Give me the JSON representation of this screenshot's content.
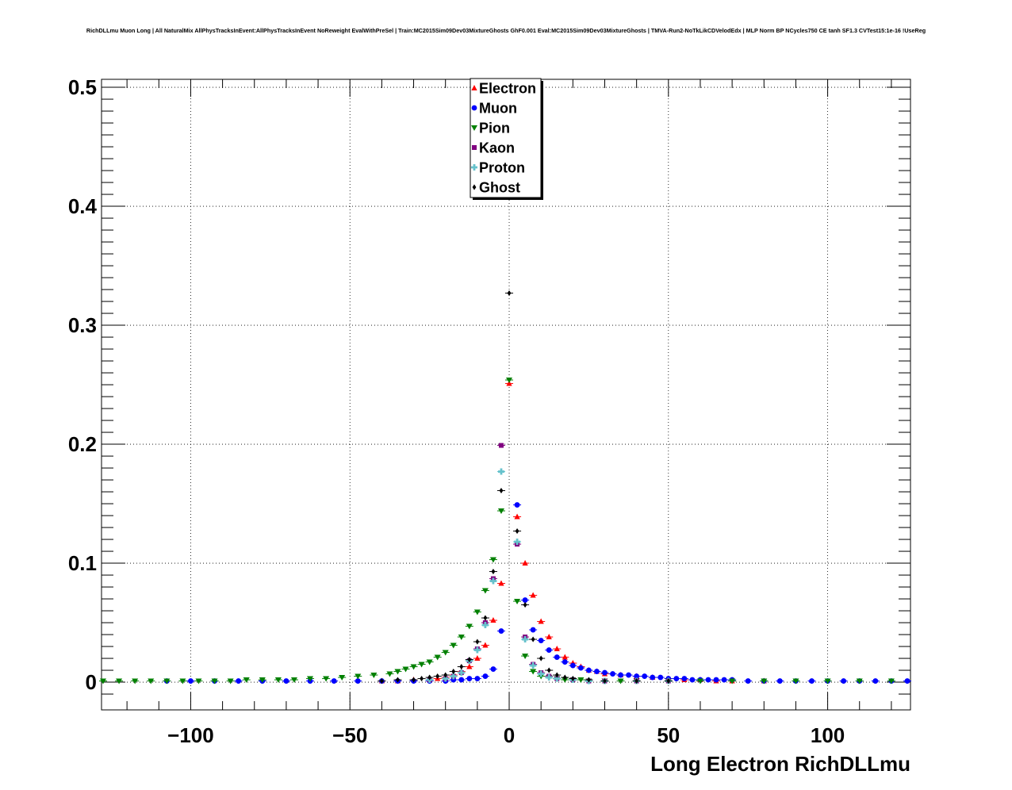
{
  "page_title": "RichDLLmu Muon Long | All NaturalMix AllPhysTracksInEvent:AllPhysTracksInEvent NoReweight EvalWithPreSel | Train:MC2015Sim09Dev03MixtureGhosts GhF0.001 Eval:MC2015Sim09Dev03MixtureGhosts | TMVA-Run2-NoTkLikCDVelodEdx | MLP Norm BP NCycles750 CE tanh SF1.3 CVTest15:1e-16 !UseReg",
  "chart_data": {
    "type": "scatter",
    "title": "",
    "xlabel": "Long Electron RichDLLmu",
    "ylabel": "",
    "xlim": [
      -128,
      126
    ],
    "ylim": [
      -0.0233,
      0.5067
    ],
    "xticks": [
      -100,
      -50,
      0,
      50,
      100
    ],
    "xtick_labels": [
      "−100",
      "−50",
      "0",
      "50",
      "100"
    ],
    "yticks": [
      0,
      0.1,
      0.2,
      0.3,
      0.4,
      0.5
    ],
    "ytick_labels": [
      "0",
      "0.1",
      "0.2",
      "0.3",
      "0.4",
      "0.5"
    ],
    "grid": true,
    "legend_position": "top-center",
    "series": [
      {
        "name": "Electron",
        "color": "#ff0000",
        "marker": "triangle-up",
        "x": [
          -40,
          -35,
          -30,
          -25,
          -22.5,
          -20,
          -17.5,
          -15,
          -12.5,
          -10,
          -7.5,
          -5,
          -2.5,
          0,
          2.5,
          5,
          7.5,
          10,
          12.5,
          15,
          17.5,
          20,
          22.5,
          25,
          27.5,
          30,
          35,
          40,
          45,
          50,
          55,
          60,
          65,
          70,
          80
        ],
        "y": [
          0.001,
          0.001,
          0.002,
          0.002,
          0.003,
          0.004,
          0.006,
          0.009,
          0.013,
          0.02,
          0.031,
          0.052,
          0.083,
          0.251,
          0.139,
          0.1,
          0.073,
          0.051,
          0.038,
          0.028,
          0.021,
          0.016,
          0.013,
          0.01,
          0.009,
          0.007,
          0.006,
          0.005,
          0.004,
          0.003,
          0.002,
          0.002,
          0.001,
          0.001,
          0.001
        ]
      },
      {
        "name": "Muon",
        "color": "#0000ff",
        "marker": "circle",
        "x": [
          -107.5,
          -100,
          -92.5,
          -85,
          -77.5,
          -70,
          -62.5,
          -55,
          -47.5,
          -40,
          -35,
          -30,
          -25,
          -20,
          -17.5,
          -15,
          -12.5,
          -10,
          -7.5,
          -5,
          -2.5,
          2.5,
          5,
          7.5,
          10,
          12.5,
          15,
          17.5,
          20,
          22.5,
          25,
          27.5,
          30,
          32.5,
          35,
          37.5,
          40,
          42.5,
          45,
          47.5,
          50,
          52.5,
          55,
          57.5,
          60,
          62.5,
          65,
          67.5,
          70,
          75,
          80,
          85,
          90,
          95,
          100,
          105,
          110,
          115,
          120,
          125
        ],
        "y": [
          0.001,
          0.001,
          0.001,
          0.001,
          0.001,
          0.001,
          0.001,
          0.001,
          0.001,
          0.001,
          0.001,
          0.001,
          0.001,
          0.001,
          0.002,
          0.002,
          0.003,
          0.003,
          0.005,
          0.011,
          0.043,
          0.149,
          0.069,
          0.044,
          0.035,
          0.027,
          0.021,
          0.017,
          0.014,
          0.012,
          0.01,
          0.009,
          0.008,
          0.007,
          0.006,
          0.006,
          0.005,
          0.005,
          0.004,
          0.004,
          0.003,
          0.003,
          0.003,
          0.002,
          0.002,
          0.002,
          0.002,
          0.002,
          0.002,
          0.001,
          0.001,
          0.001,
          0.001,
          0.001,
          0.001,
          0.001,
          0.001,
          0.001,
          0.001,
          0.001
        ]
      },
      {
        "name": "Pion",
        "color": "#008000",
        "marker": "triangle-down",
        "x": [
          -127.5,
          -122.5,
          -117.5,
          -112.5,
          -107.5,
          -102.5,
          -97.5,
          -92.5,
          -87.5,
          -82.5,
          -77.5,
          -72.5,
          -67.5,
          -62.5,
          -57.5,
          -52.5,
          -47.5,
          -42.5,
          -37.5,
          -35,
          -32.5,
          -30,
          -27.5,
          -25,
          -22.5,
          -20,
          -17.5,
          -15,
          -12.5,
          -10,
          -7.5,
          -5,
          -2.5,
          0,
          2.5,
          5,
          7.5,
          10,
          12.5,
          15,
          17.5,
          20,
          22.5,
          25,
          30,
          35,
          40,
          50,
          60,
          70,
          80,
          90,
          100,
          110,
          120
        ],
        "y": [
          0.001,
          0.001,
          0.001,
          0.001,
          0.001,
          0.001,
          0.001,
          0.001,
          0.001,
          0.002,
          0.002,
          0.002,
          0.002,
          0.003,
          0.003,
          0.004,
          0.005,
          0.006,
          0.007,
          0.009,
          0.011,
          0.013,
          0.015,
          0.017,
          0.021,
          0.025,
          0.031,
          0.038,
          0.047,
          0.059,
          0.077,
          0.103,
          0.144,
          0.254,
          0.068,
          0.022,
          0.009,
          0.005,
          0.004,
          0.003,
          0.002,
          0.002,
          0.002,
          0.001,
          0.001,
          0.001,
          0.001,
          0.001,
          0.001,
          0.001,
          0.001,
          0.001,
          0.001,
          0.001,
          0.001
        ]
      },
      {
        "name": "Kaon",
        "color": "#800080",
        "marker": "square",
        "x": [
          -25,
          -20,
          -17.5,
          -15,
          -12.5,
          -10,
          -7.5,
          -5,
          -2.5,
          2.5,
          5,
          7.5,
          10,
          12.5,
          15,
          20,
          25,
          30,
          40,
          50
        ],
        "y": [
          0.002,
          0.003,
          0.005,
          0.008,
          0.018,
          0.028,
          0.05,
          0.087,
          0.199,
          0.116,
          0.038,
          0.015,
          0.008,
          0.005,
          0.003,
          0.002,
          0.001,
          0.001,
          0.001,
          0.001
        ]
      },
      {
        "name": "Proton",
        "color": "#66c2cc",
        "marker": "cross",
        "x": [
          -25,
          -20,
          -17.5,
          -15,
          -12.5,
          -10,
          -7.5,
          -5,
          -2.5,
          2.5,
          5,
          7.5,
          10,
          12.5,
          15,
          20,
          25,
          30,
          40,
          50
        ],
        "y": [
          0.002,
          0.003,
          0.005,
          0.008,
          0.018,
          0.027,
          0.048,
          0.085,
          0.177,
          0.118,
          0.036,
          0.014,
          0.007,
          0.004,
          0.003,
          0.002,
          0.001,
          0.001,
          0.001,
          0.001
        ]
      },
      {
        "name": "Ghost",
        "color": "#000000",
        "marker": "diamond",
        "x": [
          -40,
          -35,
          -30,
          -27.5,
          -25,
          -22.5,
          -20,
          -17.5,
          -15,
          -12.5,
          -10,
          -7.5,
          -5,
          -2.5,
          0,
          2.5,
          5,
          7.5,
          10,
          12.5,
          15,
          17.5,
          20,
          25,
          30,
          40,
          50
        ],
        "y": [
          0.001,
          0.002,
          0.002,
          0.003,
          0.004,
          0.005,
          0.006,
          0.009,
          0.013,
          0.019,
          0.034,
          0.054,
          0.093,
          0.161,
          0.327,
          0.127,
          0.065,
          0.036,
          0.02,
          0.01,
          0.006,
          0.004,
          0.003,
          0.002,
          0.001,
          0.001,
          0.001
        ]
      }
    ]
  }
}
